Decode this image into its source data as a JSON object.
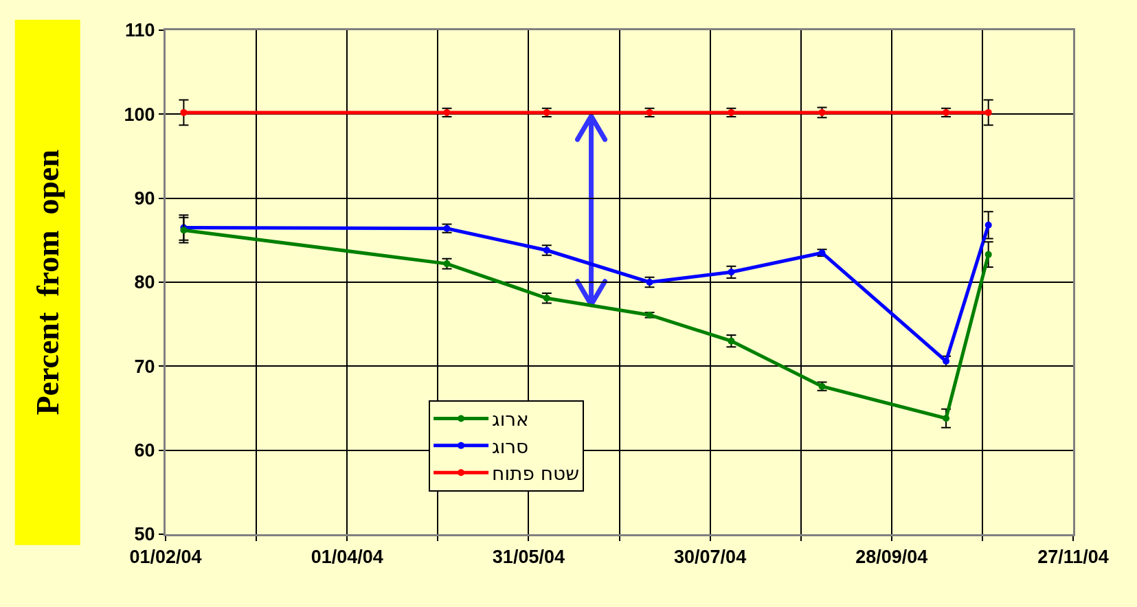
{
  "chart_data": {
    "type": "line",
    "ylabel": "Percent  from  open",
    "x": [
      "2004-02-07",
      "2004-05-04",
      "2004-06-06",
      "2004-07-10",
      "2004-08-06",
      "2004-09-05",
      "2004-10-16",
      "2004-10-30"
    ],
    "series": [
      {
        "name": "ארוג",
        "color": "#008000",
        "values": [
          86.2,
          82.2,
          78.1,
          76.1,
          73.0,
          67.6,
          63.8,
          83.3
        ],
        "errors": [
          1.5,
          0.6,
          0.6,
          0.3,
          0.7,
          0.5,
          1.1,
          1.5
        ]
      },
      {
        "name": "סרוג",
        "color": "#0000ff",
        "values": [
          86.5,
          86.4,
          83.8,
          80.0,
          81.2,
          83.5,
          70.6,
          86.8
        ],
        "errors": [
          1.5,
          0.5,
          0.6,
          0.6,
          0.7,
          0.4,
          0.6,
          1.6
        ]
      },
      {
        "name": "שטח פתוח",
        "color": "#ff0000",
        "values": [
          100.2,
          100.2,
          100.2,
          100.2,
          100.2,
          100.2,
          100.2,
          100.2
        ],
        "errors": [
          1.5,
          0.5,
          0.5,
          0.5,
          0.5,
          0.6,
          0.5,
          1.5
        ]
      }
    ],
    "xlim": [
      "2004-02-01",
      "2004-11-27"
    ],
    "xticks": [
      {
        "value": "2004-02-01",
        "label": "01/02/04"
      },
      {
        "value": "2004-03-02",
        "label": null
      },
      {
        "value": "2004-04-01",
        "label": "01/04/04"
      },
      {
        "value": "2004-05-01",
        "label": null
      },
      {
        "value": "2004-05-31",
        "label": "31/05/04"
      },
      {
        "value": "2004-06-30",
        "label": null
      },
      {
        "value": "2004-07-30",
        "label": "30/07/04"
      },
      {
        "value": "2004-08-29",
        "label": null
      },
      {
        "value": "2004-09-28",
        "label": "28/09/04"
      },
      {
        "value": "2004-10-28",
        "label": null
      },
      {
        "value": "2004-11-27",
        "label": "27/11/04"
      }
    ],
    "ylim": [
      50,
      110
    ],
    "yticks": [
      50,
      60,
      70,
      80,
      90,
      100,
      110
    ],
    "grid": true,
    "legend": "bottom",
    "marker": "circle",
    "line_style": "solid"
  }
}
